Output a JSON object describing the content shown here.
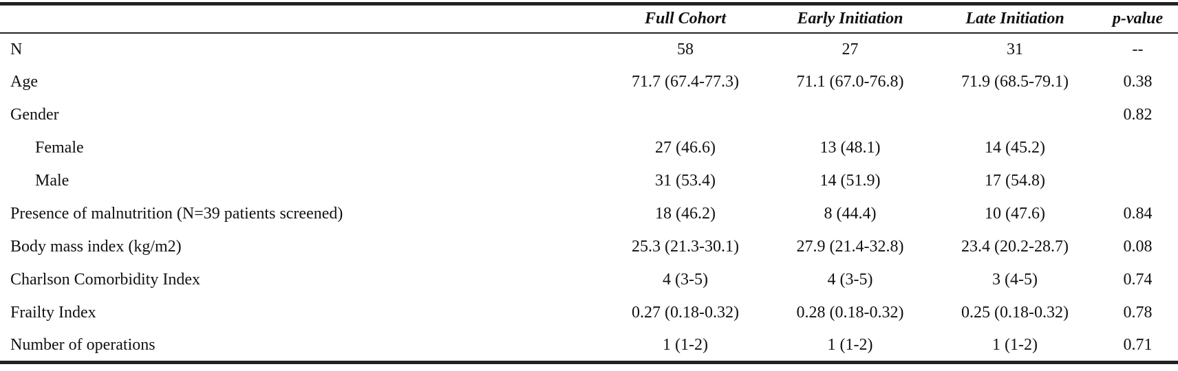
{
  "table": {
    "header": [
      "Full Cohort",
      "Early Initiation",
      "Late Initiation",
      "p-value"
    ],
    "rows": [
      [
        "N",
        "58",
        "27",
        "31",
        "--"
      ],
      [
        "Age",
        "71.7 (67.4-77.3)",
        "71.1 (67.0-76.8)",
        "71.9 (68.5-79.1)",
        "0.38"
      ],
      [
        "Gender",
        null,
        null,
        null,
        "0.82"
      ],
      [
        "Female",
        "27 (46.6)",
        "13 (48.1)",
        "14 (45.2)",
        null
      ],
      [
        "Male",
        "31 (53.4)",
        "14 (51.9)",
        "17 (54.8)",
        null
      ],
      [
        "Presence of malnutrition (N=39 patients screened)",
        "18 (46.2)",
        "8 (44.4)",
        "10 (47.6)",
        "0.84"
      ],
      [
        "Body mass index (kg/m2)",
        "25.3 (21.3-30.1)",
        "27.9 (21.4-32.8)",
        "23.4 (20.2-28.7)",
        "0.08"
      ],
      [
        "Charlson Comorbidity Index",
        "4 (3-5)",
        "4 (3-5)",
        "3 (4-5)",
        "0.74"
      ],
      [
        "Frailty Index",
        "0.27 (0.18-0.32)",
        "0.28 (0.18-0.32)",
        "0.25 (0.18-0.32)",
        "0.78"
      ],
      [
        "Number of operations",
        "1 (1-2)",
        "1 (1-2)",
        "1 (1-2)",
        "0.71"
      ]
    ]
  }
}
